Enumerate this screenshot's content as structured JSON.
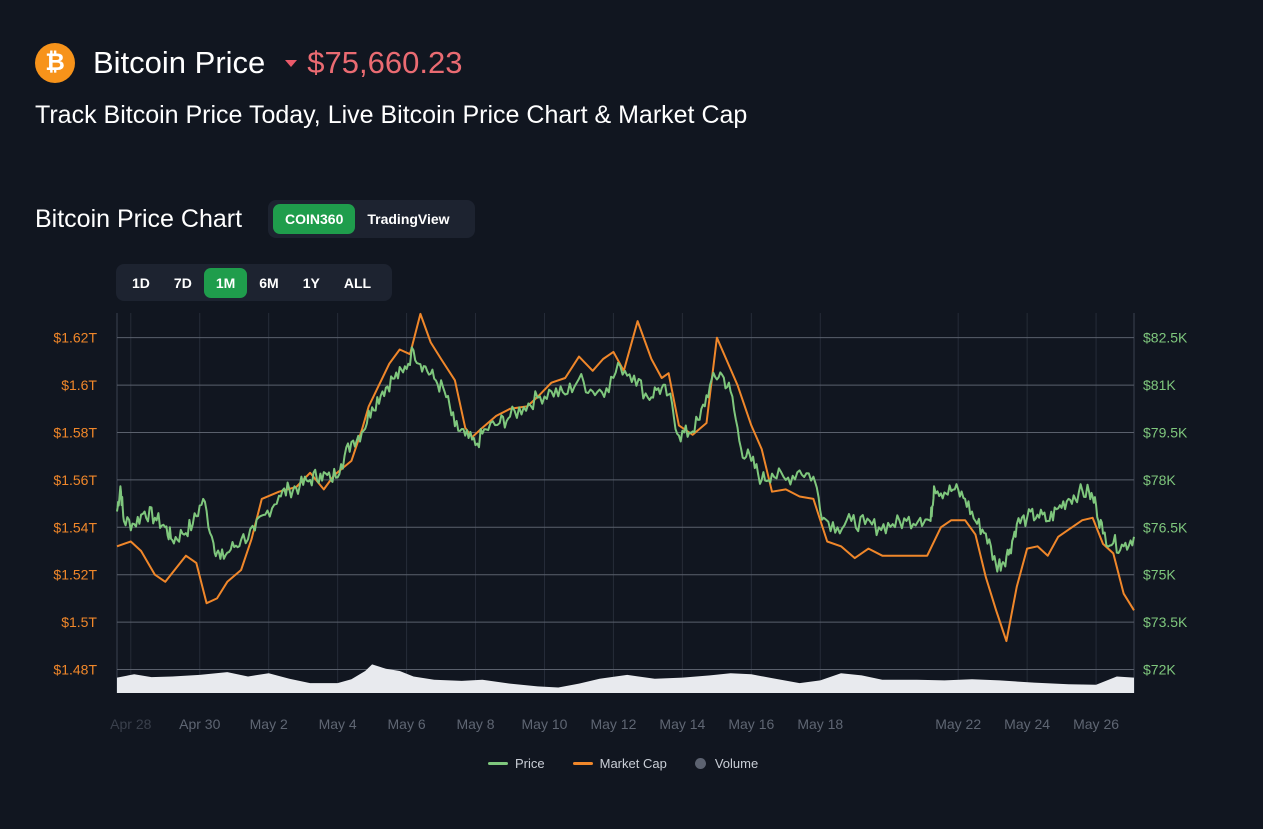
{
  "header": {
    "logo_symbol": "₿",
    "title": "Bitcoin Price",
    "price": "$75,660.23",
    "subtitle": "Track Bitcoin Price Today, Live Bitcoin Price Chart & Market Cap"
  },
  "chart_section": {
    "title": "Bitcoin Price Chart",
    "sources": [
      "COIN360",
      "TradingView"
    ],
    "active_source": "COIN360",
    "ranges": [
      "1D",
      "7D",
      "1M",
      "6M",
      "1Y",
      "ALL"
    ],
    "active_range": "1M"
  },
  "colors": {
    "price": "#7fc77d",
    "market_cap": "#f0872a",
    "volume": "#e8eaee",
    "left_axis": "#f0872a",
    "right_axis": "#7fc77d",
    "price_down": "#ea6b72",
    "accent": "#1f9d4c"
  },
  "chart_data": {
    "type": "line",
    "x_ticks": [
      "Apr 28",
      "Apr 30",
      "May 2",
      "May 4",
      "May 6",
      "May 8",
      "May 10",
      "May 12",
      "May 14",
      "May 16",
      "May 18",
      "May 22",
      "May 24",
      "May 26"
    ],
    "x_tick_days": [
      0,
      2,
      4,
      6,
      8,
      10,
      12,
      14,
      16,
      18,
      20,
      24,
      26,
      28
    ],
    "x_range_days": [
      -0.4,
      29.1
    ],
    "y_left_ticks": [
      "$1.62T",
      "$1.6T",
      "$1.58T",
      "$1.56T",
      "$1.54T",
      "$1.52T",
      "$1.5T",
      "$1.48T"
    ],
    "y_left_values": [
      1.62,
      1.6,
      1.58,
      1.56,
      1.54,
      1.52,
      1.5,
      1.48
    ],
    "y_right_ticks": [
      "$82.5K",
      "$81K",
      "$79.5K",
      "$78K",
      "$76.5K",
      "$75K",
      "$73.5K",
      "$72K"
    ],
    "y_right_values": [
      82.5,
      81,
      79.5,
      78,
      76.5,
      75,
      73.5,
      72
    ],
    "y_range_T": [
      1.4701,
      1.6304
    ],
    "legend": [
      "Price",
      "Market Cap",
      "Volume"
    ],
    "legend_position": "bottom",
    "grid": true,
    "series": [
      {
        "name": "Price",
        "unit": "K USD",
        "points": [
          [
            -0.4,
            77.0
          ],
          [
            -0.3,
            77.8
          ],
          [
            -0.2,
            76.7
          ],
          [
            0.1,
            76.6
          ],
          [
            0.4,
            77.0
          ],
          [
            0.7,
            76.8
          ],
          [
            1.0,
            76.5
          ],
          [
            1.2,
            76.1
          ],
          [
            1.5,
            76.3
          ],
          [
            1.8,
            76.6
          ],
          [
            2.1,
            77.4
          ],
          [
            2.4,
            76.0
          ],
          [
            2.6,
            75.5
          ],
          [
            2.9,
            75.8
          ],
          [
            3.2,
            76.1
          ],
          [
            3.6,
            76.4
          ],
          [
            3.9,
            76.9
          ],
          [
            4.3,
            77.5
          ],
          [
            4.6,
            77.7
          ],
          [
            4.9,
            77.8
          ],
          [
            5.2,
            78.0
          ],
          [
            5.5,
            78.2
          ],
          [
            5.8,
            78.0
          ],
          [
            6.1,
            78.5
          ],
          [
            6.4,
            79.2
          ],
          [
            6.7,
            79.5
          ],
          [
            7.0,
            80.3
          ],
          [
            7.3,
            80.8
          ],
          [
            7.6,
            81.2
          ],
          [
            7.9,
            81.4
          ],
          [
            8.2,
            82.1
          ],
          [
            8.5,
            81.6
          ],
          [
            8.8,
            81.2
          ],
          [
            9.1,
            80.8
          ],
          [
            9.4,
            79.7
          ],
          [
            9.7,
            79.4
          ],
          [
            10.0,
            79.1
          ],
          [
            10.3,
            79.6
          ],
          [
            10.7,
            79.8
          ],
          [
            11.0,
            80.0
          ],
          [
            11.4,
            80.3
          ],
          [
            11.8,
            80.6
          ],
          [
            12.2,
            80.8
          ],
          [
            12.6,
            80.7
          ],
          [
            13.0,
            81.2
          ],
          [
            13.4,
            80.8
          ],
          [
            13.8,
            80.9
          ],
          [
            14.2,
            81.6
          ],
          [
            14.6,
            81.3
          ],
          [
            15.0,
            80.6
          ],
          [
            15.3,
            80.9
          ],
          [
            15.6,
            80.7
          ],
          [
            15.9,
            79.4
          ],
          [
            16.2,
            79.5
          ],
          [
            16.5,
            79.9
          ],
          [
            16.8,
            81.0
          ],
          [
            17.1,
            81.4
          ],
          [
            17.4,
            80.8
          ],
          [
            17.7,
            79.0
          ],
          [
            18.0,
            78.6
          ],
          [
            18.3,
            78.0
          ],
          [
            18.6,
            78.2
          ],
          [
            19.0,
            78.0
          ],
          [
            19.4,
            78.3
          ],
          [
            19.8,
            78.1
          ],
          [
            20.1,
            76.8
          ],
          [
            20.5,
            76.5
          ],
          [
            20.9,
            76.7
          ],
          [
            21.3,
            76.6
          ],
          [
            21.7,
            76.5
          ],
          [
            22.1,
            76.6
          ],
          [
            22.5,
            76.7
          ],
          [
            22.9,
            76.8
          ],
          [
            23.2,
            76.7
          ],
          [
            23.3,
            77.8
          ],
          [
            23.6,
            77.6
          ],
          [
            23.9,
            77.7
          ],
          [
            24.2,
            77.4
          ],
          [
            24.5,
            76.7
          ],
          [
            24.8,
            76.3
          ],
          [
            25.1,
            75.3
          ],
          [
            25.3,
            75.4
          ],
          [
            25.5,
            75.8
          ],
          [
            25.7,
            76.6
          ],
          [
            26.0,
            76.8
          ],
          [
            26.3,
            76.9
          ],
          [
            26.6,
            76.7
          ],
          [
            26.9,
            77.1
          ],
          [
            27.2,
            77.4
          ],
          [
            27.5,
            77.6
          ],
          [
            27.8,
            77.6
          ],
          [
            28.0,
            77.2
          ],
          [
            28.2,
            76.3
          ],
          [
            28.5,
            76.0
          ],
          [
            28.8,
            75.9
          ],
          [
            29.1,
            76.2
          ]
        ]
      },
      {
        "name": "Market Cap",
        "unit": "T USD",
        "points": [
          [
            -0.4,
            1.532
          ],
          [
            0.0,
            1.534
          ],
          [
            0.3,
            1.53
          ],
          [
            0.7,
            1.52
          ],
          [
            1.0,
            1.517
          ],
          [
            1.6,
            1.528
          ],
          [
            1.9,
            1.525
          ],
          [
            2.2,
            1.508
          ],
          [
            2.5,
            1.51
          ],
          [
            2.8,
            1.517
          ],
          [
            3.2,
            1.522
          ],
          [
            3.5,
            1.535
          ],
          [
            3.8,
            1.552
          ],
          [
            4.3,
            1.555
          ],
          [
            4.8,
            1.557
          ],
          [
            5.2,
            1.563
          ],
          [
            5.6,
            1.556
          ],
          [
            5.9,
            1.562
          ],
          [
            6.4,
            1.568
          ],
          [
            6.7,
            1.581
          ],
          [
            6.9,
            1.591
          ],
          [
            7.2,
            1.6
          ],
          [
            7.5,
            1.609
          ],
          [
            7.8,
            1.615
          ],
          [
            8.1,
            1.613
          ],
          [
            8.4,
            1.63
          ],
          [
            8.7,
            1.618
          ],
          [
            9.0,
            1.611
          ],
          [
            9.4,
            1.602
          ],
          [
            9.7,
            1.582
          ],
          [
            9.9,
            1.578
          ],
          [
            10.2,
            1.582
          ],
          [
            10.6,
            1.587
          ],
          [
            11.0,
            1.59
          ],
          [
            11.5,
            1.591
          ],
          [
            11.8,
            1.595
          ],
          [
            12.2,
            1.601
          ],
          [
            12.6,
            1.603
          ],
          [
            13.0,
            1.612
          ],
          [
            13.4,
            1.606
          ],
          [
            13.7,
            1.611
          ],
          [
            14.0,
            1.614
          ],
          [
            14.3,
            1.606
          ],
          [
            14.7,
            1.627
          ],
          [
            15.1,
            1.611
          ],
          [
            15.4,
            1.603
          ],
          [
            15.6,
            1.605
          ],
          [
            15.9,
            1.583
          ],
          [
            16.3,
            1.579
          ],
          [
            16.7,
            1.584
          ],
          [
            17.0,
            1.62
          ],
          [
            17.3,
            1.61
          ],
          [
            17.6,
            1.6
          ],
          [
            18.0,
            1.583
          ],
          [
            18.3,
            1.573
          ],
          [
            18.6,
            1.555
          ],
          [
            19.0,
            1.556
          ],
          [
            19.4,
            1.553
          ],
          [
            19.8,
            1.552
          ],
          [
            20.2,
            1.534
          ],
          [
            20.6,
            1.532
          ],
          [
            21.0,
            1.527
          ],
          [
            21.4,
            1.531
          ],
          [
            21.8,
            1.528
          ],
          [
            22.2,
            1.528
          ],
          [
            22.7,
            1.528
          ],
          [
            23.1,
            1.528
          ],
          [
            23.5,
            1.54
          ],
          [
            23.8,
            1.543
          ],
          [
            24.2,
            1.543
          ],
          [
            24.5,
            1.537
          ],
          [
            24.8,
            1.519
          ],
          [
            25.1,
            1.505
          ],
          [
            25.4,
            1.492
          ],
          [
            25.7,
            1.515
          ],
          [
            26.0,
            1.531
          ],
          [
            26.3,
            1.532
          ],
          [
            26.6,
            1.528
          ],
          [
            26.9,
            1.536
          ],
          [
            27.2,
            1.539
          ],
          [
            27.6,
            1.543
          ],
          [
            27.9,
            1.544
          ],
          [
            28.2,
            1.533
          ],
          [
            28.5,
            1.529
          ],
          [
            28.8,
            1.512
          ],
          [
            29.1,
            1.505
          ]
        ]
      },
      {
        "name": "Volume",
        "points": [
          [
            -0.4,
            0.28
          ],
          [
            0.1,
            0.34
          ],
          [
            0.6,
            0.29
          ],
          [
            1.2,
            0.3
          ],
          [
            2.0,
            0.33
          ],
          [
            2.8,
            0.38
          ],
          [
            3.4,
            0.3
          ],
          [
            4.0,
            0.36
          ],
          [
            4.6,
            0.26
          ],
          [
            5.2,
            0.18
          ],
          [
            6.0,
            0.18
          ],
          [
            6.4,
            0.25
          ],
          [
            6.8,
            0.4
          ],
          [
            7.0,
            0.52
          ],
          [
            7.4,
            0.44
          ],
          [
            7.8,
            0.4
          ],
          [
            8.2,
            0.3
          ],
          [
            8.8,
            0.24
          ],
          [
            9.6,
            0.22
          ],
          [
            10.2,
            0.24
          ],
          [
            11.0,
            0.17
          ],
          [
            11.8,
            0.12
          ],
          [
            12.4,
            0.1
          ],
          [
            13.0,
            0.17
          ],
          [
            13.6,
            0.26
          ],
          [
            14.4,
            0.33
          ],
          [
            15.2,
            0.26
          ],
          [
            16.0,
            0.28
          ],
          [
            16.8,
            0.32
          ],
          [
            17.4,
            0.36
          ],
          [
            18.0,
            0.34
          ],
          [
            18.6,
            0.27
          ],
          [
            19.4,
            0.18
          ],
          [
            20.0,
            0.23
          ],
          [
            20.6,
            0.36
          ],
          [
            21.2,
            0.32
          ],
          [
            21.8,
            0.24
          ],
          [
            22.8,
            0.24
          ],
          [
            23.6,
            0.23
          ],
          [
            24.4,
            0.25
          ],
          [
            25.2,
            0.23
          ],
          [
            26.2,
            0.19
          ],
          [
            27.2,
            0.16
          ],
          [
            28.0,
            0.15
          ],
          [
            28.6,
            0.3
          ],
          [
            29.1,
            0.28
          ]
        ]
      }
    ]
  }
}
